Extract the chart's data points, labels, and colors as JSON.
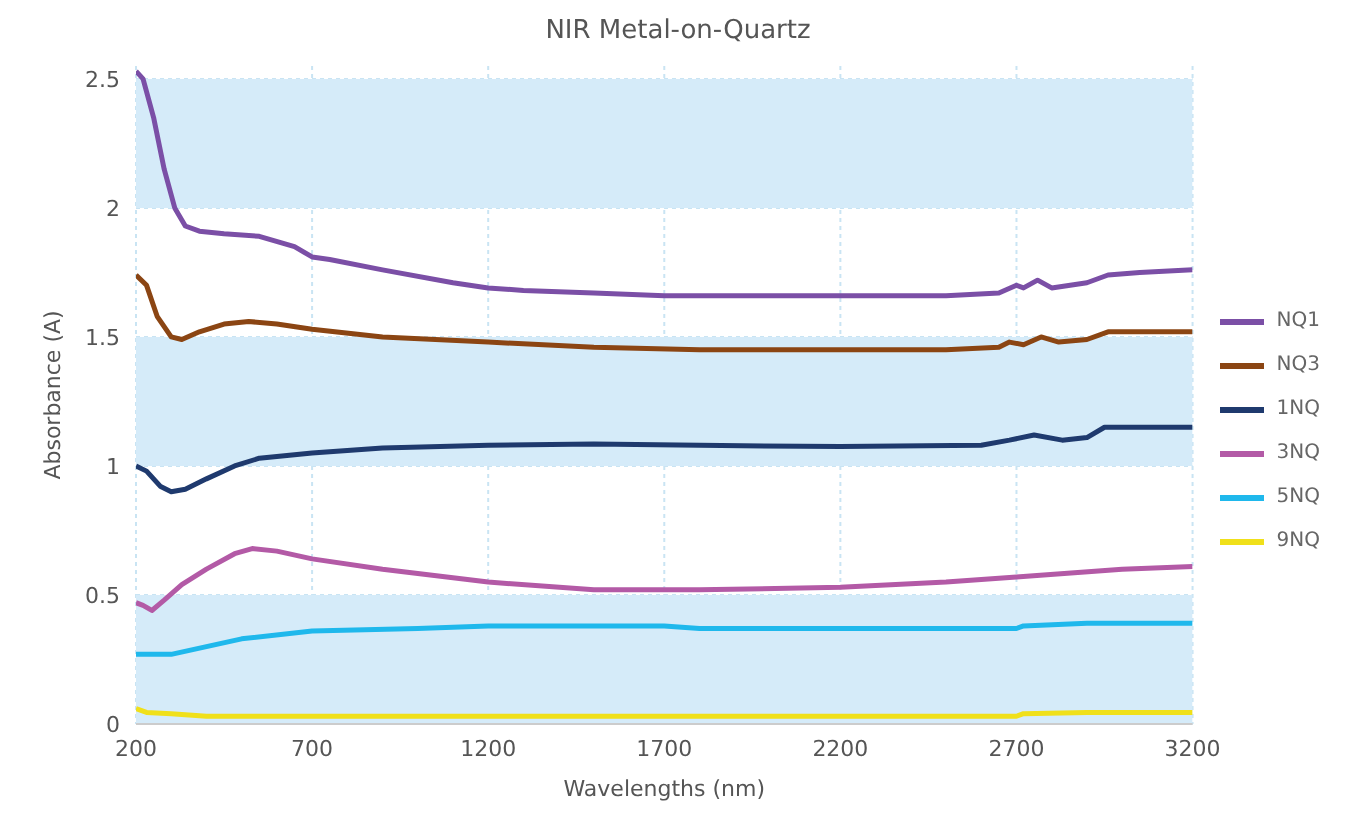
{
  "chart_data": {
    "type": "line",
    "title": "NIR Metal-on-Quartz",
    "xlabel": "Wavelengths (nm)",
    "ylabel": "Absorbance (A)",
    "xlim": [
      200,
      3200
    ],
    "xticks": [
      200,
      700,
      1200,
      1700,
      2200,
      2700,
      3200
    ],
    "ylim": [
      0,
      2.55
    ],
    "yticks": [
      0,
      0.5,
      1,
      1.5,
      2,
      2.5
    ],
    "grid": true,
    "legend": "right",
    "line_style": "solid",
    "marker": "none",
    "bands": [
      {
        "axis": "y",
        "from": 0,
        "to": 0.5,
        "color": "#d5ebf9"
      },
      {
        "axis": "y",
        "from": 1,
        "to": 1.5,
        "color": "#d5ebf9"
      },
      {
        "axis": "y",
        "from": 2,
        "to": 2.5,
        "color": "#d5ebf9"
      }
    ],
    "series": [
      {
        "name": "NQ1",
        "color": "#7b4fa6",
        "x": [
          200,
          220,
          250,
          280,
          310,
          340,
          380,
          450,
          550,
          650,
          700,
          750,
          900,
          1100,
          1200,
          1300,
          1500,
          1700,
          2000,
          2500,
          2650,
          2700,
          2720,
          2760,
          2800,
          2900,
          2960,
          3050,
          3200
        ],
        "values": [
          2.53,
          2.5,
          2.35,
          2.15,
          2.0,
          1.93,
          1.91,
          1.9,
          1.89,
          1.85,
          1.81,
          1.8,
          1.76,
          1.71,
          1.69,
          1.68,
          1.67,
          1.66,
          1.66,
          1.66,
          1.67,
          1.7,
          1.69,
          1.72,
          1.69,
          1.71,
          1.74,
          1.75,
          1.76
        ]
      },
      {
        "name": "NQ3",
        "color": "#8b4513",
        "x": [
          200,
          230,
          260,
          300,
          330,
          380,
          450,
          520,
          600,
          700,
          900,
          1200,
          1500,
          1800,
          2500,
          2650,
          2680,
          2720,
          2770,
          2820,
          2900,
          2960,
          3200
        ],
        "values": [
          1.74,
          1.7,
          1.58,
          1.5,
          1.49,
          1.52,
          1.55,
          1.56,
          1.55,
          1.53,
          1.5,
          1.48,
          1.46,
          1.45,
          1.45,
          1.46,
          1.48,
          1.47,
          1.5,
          1.48,
          1.49,
          1.52,
          1.52
        ]
      },
      {
        "name": "1NQ",
        "color": "#1f3a6e",
        "x": [
          200,
          230,
          270,
          300,
          340,
          400,
          480,
          550,
          700,
          900,
          1200,
          1500,
          1800,
          2200,
          2600,
          2680,
          2750,
          2830,
          2900,
          2950,
          3200
        ],
        "values": [
          1.0,
          0.98,
          0.92,
          0.9,
          0.91,
          0.95,
          1.0,
          1.03,
          1.05,
          1.07,
          1.08,
          1.085,
          1.08,
          1.075,
          1.08,
          1.1,
          1.12,
          1.1,
          1.11,
          1.15,
          1.15
        ]
      },
      {
        "name": "3NQ",
        "color": "#b35aa6",
        "x": [
          200,
          220,
          245,
          280,
          330,
          400,
          480,
          530,
          600,
          700,
          900,
          1200,
          1500,
          1800,
          2200,
          2500,
          2700,
          3000,
          3200
        ],
        "values": [
          0.47,
          0.46,
          0.44,
          0.48,
          0.54,
          0.6,
          0.66,
          0.68,
          0.67,
          0.64,
          0.6,
          0.55,
          0.52,
          0.52,
          0.53,
          0.55,
          0.57,
          0.6,
          0.61
        ]
      },
      {
        "name": "5NQ",
        "color": "#1fb8ec",
        "x": [
          200,
          300,
          400,
          500,
          700,
          1000,
          1200,
          1700,
          1800,
          2700,
          2720,
          2900,
          3200
        ],
        "values": [
          0.27,
          0.27,
          0.3,
          0.33,
          0.36,
          0.37,
          0.38,
          0.38,
          0.37,
          0.37,
          0.38,
          0.39,
          0.39
        ]
      },
      {
        "name": "9NQ",
        "color": "#f0e01a",
        "x": [
          200,
          230,
          300,
          400,
          2700,
          2720,
          2900,
          3200
        ],
        "values": [
          0.06,
          0.045,
          0.04,
          0.03,
          0.03,
          0.04,
          0.045,
          0.045
        ]
      }
    ]
  }
}
